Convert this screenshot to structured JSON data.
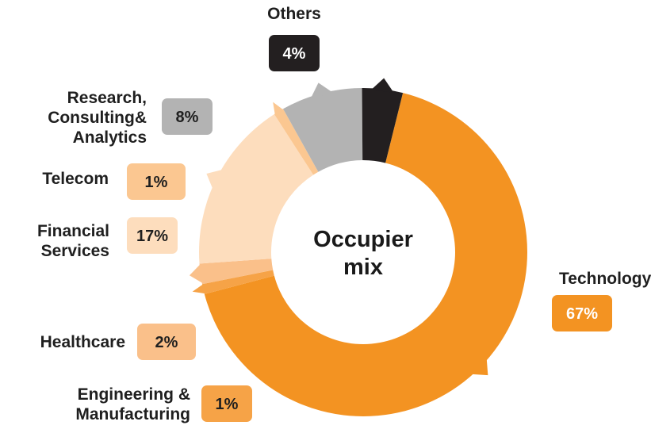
{
  "chart_data": {
    "type": "pie",
    "title": "Occupier mix",
    "center_label_lines": [
      "Occupier",
      "mix"
    ],
    "slices": [
      {
        "name": "Technology",
        "label_lines": [
          "Technology"
        ],
        "value": 67,
        "display": "67%",
        "color": "#F39322",
        "text_color": "#ffffff"
      },
      {
        "name": "Engineering & Manufacturing",
        "label_lines": [
          "Engineering &",
          "Manufacturing"
        ],
        "value": 1,
        "display": "1%",
        "color": "#F6A347",
        "text_color": "#1f1f1f"
      },
      {
        "name": "Healthcare",
        "label_lines": [
          "Healthcare"
        ],
        "value": 2,
        "display": "2%",
        "color": "#FAC08A",
        "text_color": "#1f1f1f"
      },
      {
        "name": "Financial Services",
        "label_lines": [
          "Financial",
          "Services"
        ],
        "value": 17,
        "display": "17%",
        "color": "#FDDDBD",
        "text_color": "#1f1f1f"
      },
      {
        "name": "Telecom",
        "label_lines": [
          "Telecom"
        ],
        "value": 1,
        "display": "1%",
        "color": "#FBC791",
        "text_color": "#1f1f1f"
      },
      {
        "name": "Research, Consulting& Analytics",
        "label_lines": [
          "Research,",
          "Consulting&",
          "Analytics"
        ],
        "value": 8,
        "display": "8%",
        "color": "#B3B3B3",
        "text_color": "#1f1f1f"
      },
      {
        "name": "Others",
        "label_lines": [
          "Others"
        ],
        "value": 4,
        "display": "4%",
        "color": "#231F20",
        "text_color": "#ffffff"
      }
    ]
  }
}
